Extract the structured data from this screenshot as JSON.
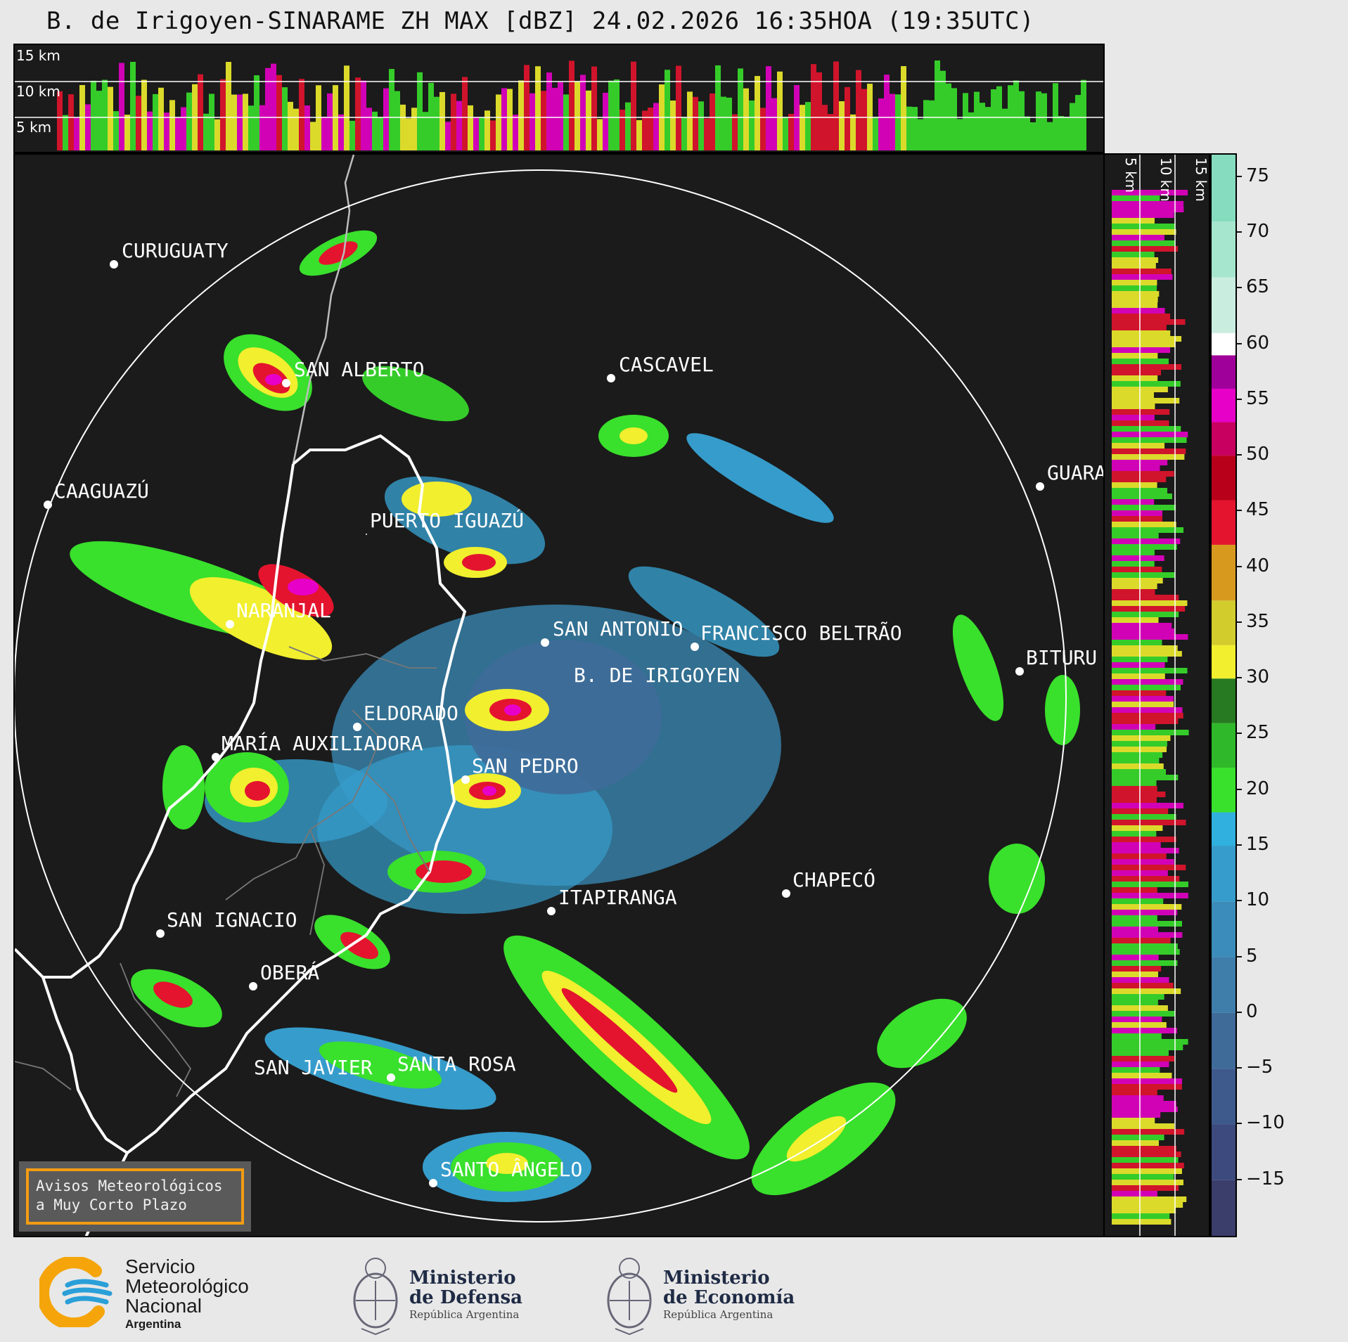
{
  "title": "B. de Irigoyen-SINARAME ZH MAX [dBZ] 24.02.2026 16:35HOA (19:35UTC)",
  "top_panel": {
    "height_labels": [
      "15 km",
      "10 km",
      "5 km"
    ]
  },
  "side_panel": {
    "height_labels": [
      "5 km",
      "10 km",
      "15 km"
    ]
  },
  "colorbar": {
    "unit": "dBZ",
    "ticks": [
      "75",
      "70",
      "65",
      "60",
      "55",
      "50",
      "45",
      "40",
      "35",
      "30",
      "25",
      "20",
      "15",
      "10",
      "5",
      "0",
      "−5",
      "−10",
      "−15"
    ],
    "range": [
      -20,
      77
    ],
    "bands": [
      {
        "from": -20,
        "to": -15,
        "color": "#3b3d6b"
      },
      {
        "from": -15,
        "to": -10,
        "color": "#3d4a7d"
      },
      {
        "from": -10,
        "to": -5,
        "color": "#3e5a8c"
      },
      {
        "from": -5,
        "to": 0,
        "color": "#3f6b99"
      },
      {
        "from": 0,
        "to": 5,
        "color": "#3f7daa"
      },
      {
        "from": 5,
        "to": 10,
        "color": "#3b8cba"
      },
      {
        "from": 10,
        "to": 15,
        "color": "#369ccb"
      },
      {
        "from": 15,
        "to": 18,
        "color": "#2fb0de"
      },
      {
        "from": 18,
        "to": 22,
        "color": "#39e02c"
      },
      {
        "from": 22,
        "to": 26,
        "color": "#2fb82a"
      },
      {
        "from": 26,
        "to": 30,
        "color": "#277a22"
      },
      {
        "from": 30,
        "to": 33,
        "color": "#f1ef2e"
      },
      {
        "from": 33,
        "to": 37,
        "color": "#d2cc2c"
      },
      {
        "from": 37,
        "to": 42,
        "color": "#d79a1f"
      },
      {
        "from": 42,
        "to": 46,
        "color": "#e4142e"
      },
      {
        "from": 46,
        "to": 50,
        "color": "#b8001a"
      },
      {
        "from": 50,
        "to": 53,
        "color": "#c8005f"
      },
      {
        "from": 53,
        "to": 56,
        "color": "#e600c8"
      },
      {
        "from": 56,
        "to": 59,
        "color": "#a0009a"
      },
      {
        "from": 59,
        "to": 61,
        "color": "#ffffff"
      },
      {
        "from": 61,
        "to": 66,
        "color": "#c9eee0"
      },
      {
        "from": 66,
        "to": 71,
        "color": "#a6e6cf"
      },
      {
        "from": 71,
        "to": 77,
        "color": "#86dcbe"
      }
    ]
  },
  "cities": [
    {
      "name": "CURUGUATY"
    },
    {
      "name": "SAN ALBERTO"
    },
    {
      "name": "CASCAVEL"
    },
    {
      "name": "CAAGUAZÚ"
    },
    {
      "name": "GUARA"
    },
    {
      "name": "PUERTO IGUAZÚ"
    },
    {
      "name": "NARANJAL"
    },
    {
      "name": "SAN ANTONIO"
    },
    {
      "name": "FRANCISCO BELTRÃO"
    },
    {
      "name": "B. DE IRIGOYEN"
    },
    {
      "name": "BITURU"
    },
    {
      "name": "ELDORADO"
    },
    {
      "name": "MARÍA AUXILIADORA"
    },
    {
      "name": "SAN PEDRO"
    },
    {
      "name": "CHAPECÓ"
    },
    {
      "name": "ITAPIRANGA"
    },
    {
      "name": "SAN IGNACIO"
    },
    {
      "name": "OBERÁ"
    },
    {
      "name": "SAN JAVIER"
    },
    {
      "name": "SANTA ROSA"
    },
    {
      "name": "SANTO ÂNGELO"
    }
  ],
  "alert": {
    "line1": "Avisos Meteorológicos",
    "line2": "a Muy Corto Plazo"
  },
  "footer": {
    "smn": {
      "line1": "Servicio",
      "line2": "Meteorológico",
      "line3": "Nacional",
      "country": "Argentina"
    },
    "defensa": {
      "line1": "Ministerio",
      "line2": "de Defensa",
      "line3": "República Argentina"
    },
    "economia": {
      "line1": "Ministerio",
      "line2": "de Economía",
      "line3": "República Argentina"
    }
  },
  "colors": {
    "panel_bg": "#1b1b1b",
    "range_ring": "#ffffff",
    "alert_border": "#f39c12",
    "smn_blue": "#2a9fd8",
    "smn_orange": "#f5a50a"
  }
}
